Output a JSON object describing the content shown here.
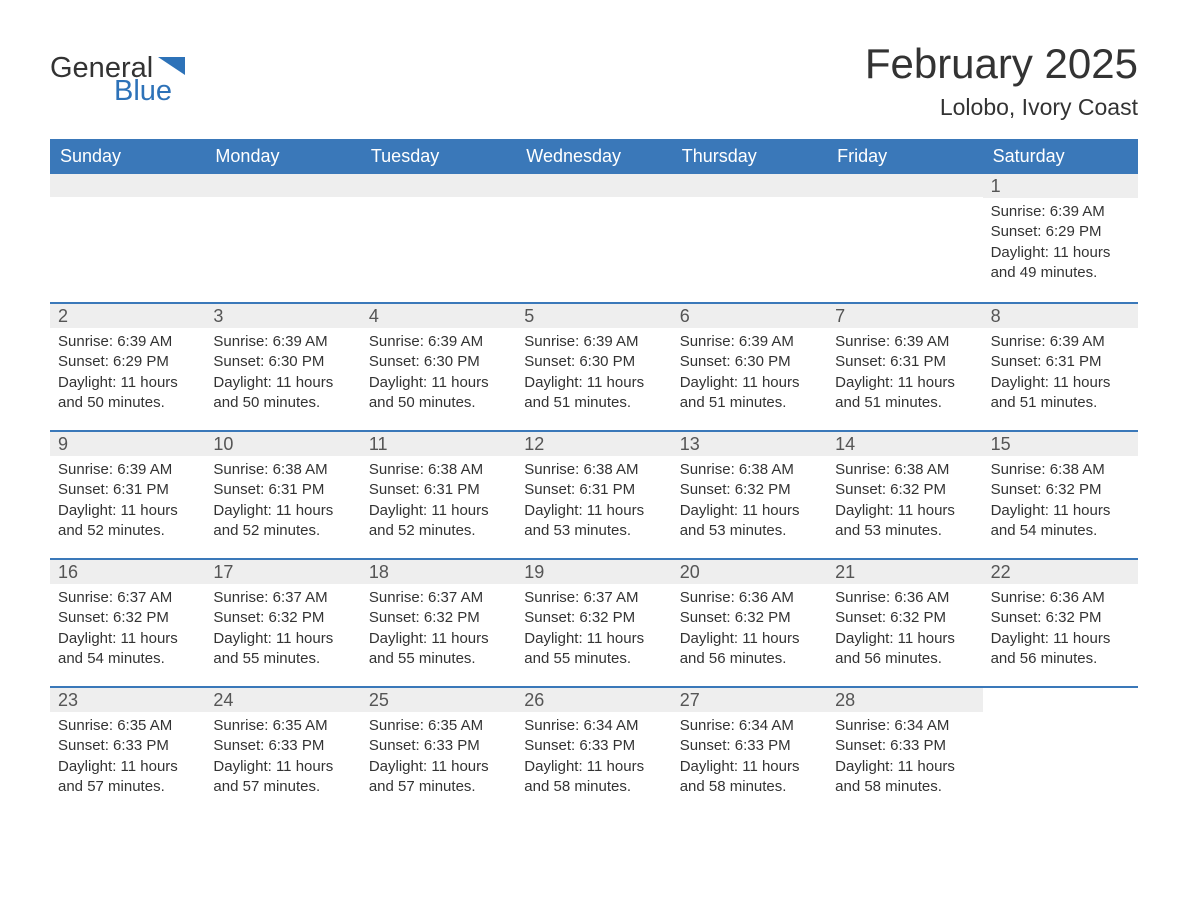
{
  "logo": {
    "text_general": "General",
    "text_blue": "Blue",
    "flag_color": "#2d72b8"
  },
  "title": "February 2025",
  "location": "Lolobo, Ivory Coast",
  "colors": {
    "header_bg": "#3a78b9",
    "header_text": "#ffffff",
    "daynum_bg": "#eeeeee",
    "daynum_text": "#555555",
    "body_text": "#333333",
    "row_divider": "#3a78b9",
    "page_bg": "#ffffff"
  },
  "typography": {
    "title_fontsize": 42,
    "location_fontsize": 23,
    "header_fontsize": 18,
    "daynum_fontsize": 18,
    "content_fontsize": 15,
    "logo_fontsize": 29
  },
  "weekday_headers": [
    "Sunday",
    "Monday",
    "Tuesday",
    "Wednesday",
    "Thursday",
    "Friday",
    "Saturday"
  ],
  "weeks": [
    [
      {
        "empty": true
      },
      {
        "empty": true
      },
      {
        "empty": true
      },
      {
        "empty": true
      },
      {
        "empty": true
      },
      {
        "empty": true
      },
      {
        "day": "1",
        "sunrise": "Sunrise: 6:39 AM",
        "sunset": "Sunset: 6:29 PM",
        "daylight": "Daylight: 11 hours and 49 minutes."
      }
    ],
    [
      {
        "day": "2",
        "sunrise": "Sunrise: 6:39 AM",
        "sunset": "Sunset: 6:29 PM",
        "daylight": "Daylight: 11 hours and 50 minutes."
      },
      {
        "day": "3",
        "sunrise": "Sunrise: 6:39 AM",
        "sunset": "Sunset: 6:30 PM",
        "daylight": "Daylight: 11 hours and 50 minutes."
      },
      {
        "day": "4",
        "sunrise": "Sunrise: 6:39 AM",
        "sunset": "Sunset: 6:30 PM",
        "daylight": "Daylight: 11 hours and 50 minutes."
      },
      {
        "day": "5",
        "sunrise": "Sunrise: 6:39 AM",
        "sunset": "Sunset: 6:30 PM",
        "daylight": "Daylight: 11 hours and 51 minutes."
      },
      {
        "day": "6",
        "sunrise": "Sunrise: 6:39 AM",
        "sunset": "Sunset: 6:30 PM",
        "daylight": "Daylight: 11 hours and 51 minutes."
      },
      {
        "day": "7",
        "sunrise": "Sunrise: 6:39 AM",
        "sunset": "Sunset: 6:31 PM",
        "daylight": "Daylight: 11 hours and 51 minutes."
      },
      {
        "day": "8",
        "sunrise": "Sunrise: 6:39 AM",
        "sunset": "Sunset: 6:31 PM",
        "daylight": "Daylight: 11 hours and 51 minutes."
      }
    ],
    [
      {
        "day": "9",
        "sunrise": "Sunrise: 6:39 AM",
        "sunset": "Sunset: 6:31 PM",
        "daylight": "Daylight: 11 hours and 52 minutes."
      },
      {
        "day": "10",
        "sunrise": "Sunrise: 6:38 AM",
        "sunset": "Sunset: 6:31 PM",
        "daylight": "Daylight: 11 hours and 52 minutes."
      },
      {
        "day": "11",
        "sunrise": "Sunrise: 6:38 AM",
        "sunset": "Sunset: 6:31 PM",
        "daylight": "Daylight: 11 hours and 52 minutes."
      },
      {
        "day": "12",
        "sunrise": "Sunrise: 6:38 AM",
        "sunset": "Sunset: 6:31 PM",
        "daylight": "Daylight: 11 hours and 53 minutes."
      },
      {
        "day": "13",
        "sunrise": "Sunrise: 6:38 AM",
        "sunset": "Sunset: 6:32 PM",
        "daylight": "Daylight: 11 hours and 53 minutes."
      },
      {
        "day": "14",
        "sunrise": "Sunrise: 6:38 AM",
        "sunset": "Sunset: 6:32 PM",
        "daylight": "Daylight: 11 hours and 53 minutes."
      },
      {
        "day": "15",
        "sunrise": "Sunrise: 6:38 AM",
        "sunset": "Sunset: 6:32 PM",
        "daylight": "Daylight: 11 hours and 54 minutes."
      }
    ],
    [
      {
        "day": "16",
        "sunrise": "Sunrise: 6:37 AM",
        "sunset": "Sunset: 6:32 PM",
        "daylight": "Daylight: 11 hours and 54 minutes."
      },
      {
        "day": "17",
        "sunrise": "Sunrise: 6:37 AM",
        "sunset": "Sunset: 6:32 PM",
        "daylight": "Daylight: 11 hours and 55 minutes."
      },
      {
        "day": "18",
        "sunrise": "Sunrise: 6:37 AM",
        "sunset": "Sunset: 6:32 PM",
        "daylight": "Daylight: 11 hours and 55 minutes."
      },
      {
        "day": "19",
        "sunrise": "Sunrise: 6:37 AM",
        "sunset": "Sunset: 6:32 PM",
        "daylight": "Daylight: 11 hours and 55 minutes."
      },
      {
        "day": "20",
        "sunrise": "Sunrise: 6:36 AM",
        "sunset": "Sunset: 6:32 PM",
        "daylight": "Daylight: 11 hours and 56 minutes."
      },
      {
        "day": "21",
        "sunrise": "Sunrise: 6:36 AM",
        "sunset": "Sunset: 6:32 PM",
        "daylight": "Daylight: 11 hours and 56 minutes."
      },
      {
        "day": "22",
        "sunrise": "Sunrise: 6:36 AM",
        "sunset": "Sunset: 6:32 PM",
        "daylight": "Daylight: 11 hours and 56 minutes."
      }
    ],
    [
      {
        "day": "23",
        "sunrise": "Sunrise: 6:35 AM",
        "sunset": "Sunset: 6:33 PM",
        "daylight": "Daylight: 11 hours and 57 minutes."
      },
      {
        "day": "24",
        "sunrise": "Sunrise: 6:35 AM",
        "sunset": "Sunset: 6:33 PM",
        "daylight": "Daylight: 11 hours and 57 minutes."
      },
      {
        "day": "25",
        "sunrise": "Sunrise: 6:35 AM",
        "sunset": "Sunset: 6:33 PM",
        "daylight": "Daylight: 11 hours and 57 minutes."
      },
      {
        "day": "26",
        "sunrise": "Sunrise: 6:34 AM",
        "sunset": "Sunset: 6:33 PM",
        "daylight": "Daylight: 11 hours and 58 minutes."
      },
      {
        "day": "27",
        "sunrise": "Sunrise: 6:34 AM",
        "sunset": "Sunset: 6:33 PM",
        "daylight": "Daylight: 11 hours and 58 minutes."
      },
      {
        "day": "28",
        "sunrise": "Sunrise: 6:34 AM",
        "sunset": "Sunset: 6:33 PM",
        "daylight": "Daylight: 11 hours and 58 minutes."
      },
      {
        "empty": true,
        "no_bar": true
      }
    ]
  ]
}
